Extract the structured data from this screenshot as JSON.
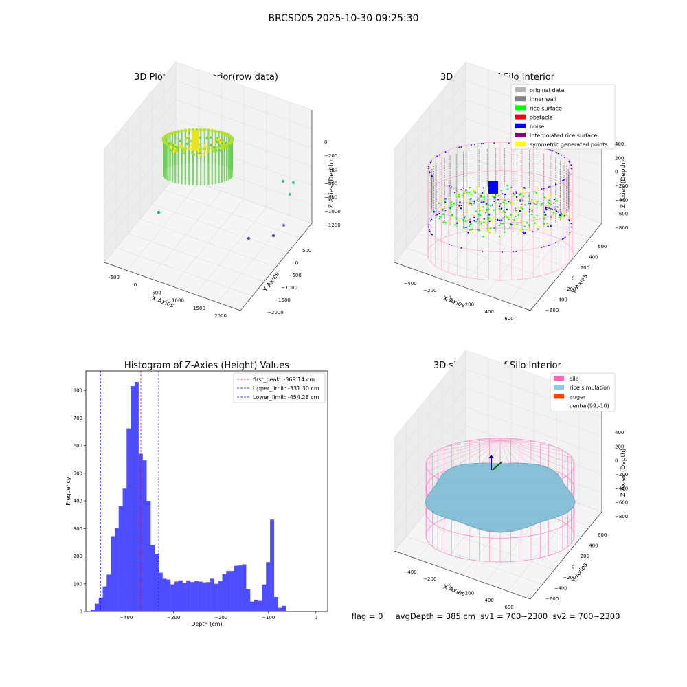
{
  "figure": {
    "suptitle": "BRCSD05 2025-10-30 09:25:30",
    "status_line": "flag = 0     avgDepth = 385 cm  sv1 = 700~2300  sv2 = 700~2300"
  },
  "chart_data": [
    {
      "type": "scatter",
      "projection": "3d",
      "title": "3D Plot of Silo Interior(row data)",
      "xlabel": "X Axies",
      "ylabel": "Y Axies",
      "zlabel": "Z Axies (Depth)",
      "xticks": [
        "-500",
        "0",
        "500",
        "1000",
        "1500",
        "2000"
      ],
      "yticks": [
        "500",
        "0",
        "−500",
        "−1000",
        "−1500",
        "−2000"
      ],
      "zticks": [
        "0",
        "−200",
        "−400",
        "−600",
        "−800",
        "−1000",
        "−1200"
      ],
      "colormap": "viridis",
      "point_cloud": "dense cylindrical ring of points near x=0, y=0, z from about -100 to -300",
      "outliers": [
        {
          "x": 1000,
          "y": -2000,
          "z": -600
        },
        {
          "x": 1100,
          "y": -2000,
          "z": -580
        },
        {
          "x": 1050,
          "y": -1900,
          "z": -800
        },
        {
          "x": -500,
          "y": 0,
          "z": -700
        },
        {
          "x": 1400,
          "y": -1500,
          "z": -1200
        },
        {
          "x": 1300,
          "y": -1000,
          "z": -1250
        },
        {
          "x": 1600,
          "y": -1200,
          "z": -1200
        }
      ],
      "grid": true
    },
    {
      "type": "scatter",
      "projection": "3d",
      "title": "3D classify of Silo Interior",
      "xlabel": "X Axies",
      "ylabel": "Y Axies",
      "zlabel": "Z Axies (Depth)",
      "xticks": [
        "−400",
        "−200",
        "0",
        "200",
        "400",
        "600"
      ],
      "yticks": [
        "600",
        "400",
        "200",
        "0",
        "−200",
        "−400",
        "−600"
      ],
      "zticks": [
        "400",
        "200",
        "0",
        "−200",
        "−400",
        "−600",
        "−800"
      ],
      "legend": [
        {
          "label": "original data",
          "color": "#b3b3b3"
        },
        {
          "label": "inner wall",
          "color": "#808080"
        },
        {
          "label": "rice surface",
          "color": "#00ff00"
        },
        {
          "label": "obstacle",
          "color": "#ff0000"
        },
        {
          "label": "noise",
          "color": "#0000ff"
        },
        {
          "label": "interpolated rice surface",
          "color": "#800080"
        },
        {
          "label": "symmetric generated points",
          "color": "#ffff00"
        }
      ],
      "legend_loc": "upper right",
      "silo_wireframe_color": "#ff69b4",
      "grid": true
    },
    {
      "type": "bar",
      "title": "Histogram of Z-Axies (Height) Values",
      "xlabel": "Depth (cm)",
      "ylabel": "Frequency",
      "xlim": [
        -485,
        25
      ],
      "ylim": [
        0,
        870
      ],
      "xticks": [
        -400,
        -300,
        -200,
        -100,
        0
      ],
      "yticks": [
        0,
        100,
        200,
        300,
        400,
        500,
        600,
        700,
        800
      ],
      "bin_width": 8.4,
      "bins_start": -474.5,
      "bar_color": "#4d4dff",
      "values": [
        5,
        28,
        50,
        90,
        133,
        272,
        302,
        380,
        444,
        662,
        815,
        830,
        570,
        546,
        400,
        240,
        208,
        140,
        118,
        115,
        98,
        108,
        112,
        103,
        112,
        106,
        110,
        108,
        105,
        106,
        118,
        100,
        110,
        135,
        146,
        146,
        165,
        166,
        170,
        80,
        35,
        42,
        38,
        97,
        178,
        332,
        52,
        13,
        20
      ],
      "vlines": [
        {
          "label": "first_peak: -369.14 cm",
          "x": -369.14,
          "color": "#ff0000"
        },
        {
          "label": "Upper_limit: -331.30 cm",
          "x": -331.3,
          "color": "#0000ff"
        },
        {
          "label": "Lower_limit: -454.28 cm",
          "x": -454.28,
          "color": "#0000ff"
        }
      ],
      "legend_loc": "upper right"
    },
    {
      "type": "scatter",
      "projection": "3d",
      "title": "3D simulation of Silo Interior",
      "xlabel": "X Axies",
      "ylabel": "Y Axies",
      "zlabel": "Z Axies (Depth)",
      "xticks": [
        "−400",
        "−200",
        "0",
        "200",
        "400",
        "600"
      ],
      "yticks": [
        "600",
        "400",
        "200",
        "0",
        "−200",
        "−400",
        "−600"
      ],
      "zticks": [
        "400",
        "200",
        "0",
        "−200",
        "−400",
        "−600",
        "−800"
      ],
      "legend": [
        {
          "label": "silo",
          "color": "#ff69b4"
        },
        {
          "label": "rice simulation",
          "color": "#87ceeb"
        },
        {
          "label": "auger",
          "color": "#ff4500"
        },
        {
          "label": "center(99,-10)",
          "color": "#ffffff"
        }
      ],
      "legend_loc": "upper right",
      "grid": true
    }
  ]
}
